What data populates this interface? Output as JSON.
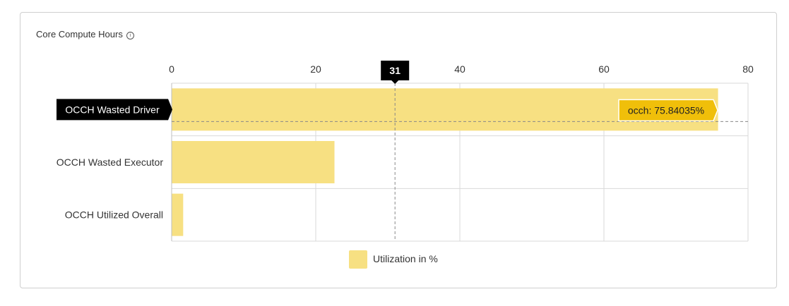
{
  "card": {
    "title": "Core Compute Hours",
    "info_icon": "info-circle-icon"
  },
  "chart_data": {
    "type": "bar",
    "orientation": "horizontal",
    "title": "Core Compute Hours",
    "categories": [
      "OCCH Wasted Driver",
      "OCCH Wasted Executor",
      "OCCH Utilized Overall"
    ],
    "series": [
      {
        "name": "Utilization in %",
        "values": [
          75.84035,
          22.6,
          1.6
        ],
        "color": "#f7e082"
      }
    ],
    "xlim": [
      0,
      80
    ],
    "xticks": [
      0,
      20,
      40,
      60,
      80
    ],
    "xaxis_position": "top",
    "grid": true,
    "legend": {
      "position": "bottom-center"
    },
    "crosshair": {
      "x_value": 31,
      "x_label": "31",
      "y_category": "OCCH Wasted Driver"
    },
    "tooltip": {
      "text": "occh: 75.84035%",
      "category": "OCCH Wasted Driver",
      "color": "#f0bf0a"
    }
  }
}
